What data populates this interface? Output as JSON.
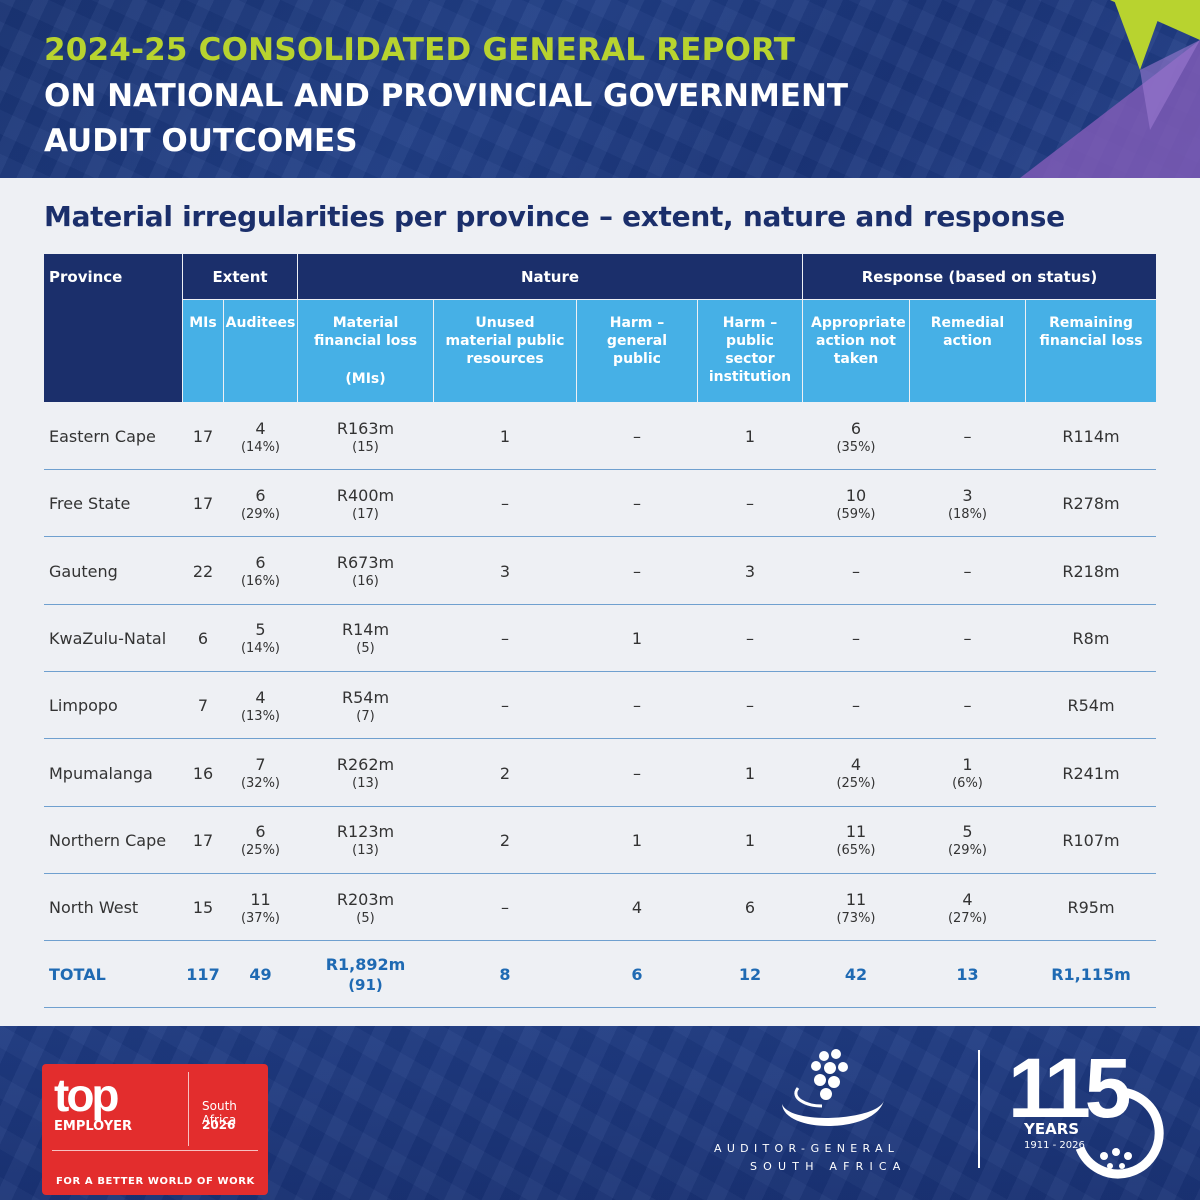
{
  "header": {
    "line1": "2024-25 CONSOLIDATED GENERAL REPORT",
    "line2": "ON NATIONAL AND PROVINCIAL GOVERNMENT",
    "line3": "AUDIT OUTCOMES"
  },
  "subtitle": "Material irregularities per province – extent, nature and response",
  "table": {
    "groups": {
      "province": "Province",
      "extent": "Extent",
      "nature": "Nature",
      "response": "Response (based on status)"
    },
    "subheaders": {
      "mis": "MIs",
      "auditees": "Auditees",
      "mfl": "Material financial loss",
      "mfl_unit": "(MIs)",
      "unused": "Unused material public resources",
      "harm_public": "Harm – general public",
      "harm_sector": "Harm – public sector institution",
      "action_not_taken": "Appropriate action not taken",
      "remedial": "Remedial action",
      "remaining": "Remaining financial loss"
    },
    "rows": [
      {
        "province": "Eastern Cape",
        "mis": "17",
        "auditees": "4",
        "auditees_pct": "(14%)",
        "mfl": "R163m",
        "mfl_count": "(15)",
        "unused": "1",
        "harm_public": "–",
        "harm_sector": "1",
        "action": "6",
        "action_pct": "(35%)",
        "remedial": "–",
        "remedial_pct": "",
        "remaining": "R114m"
      },
      {
        "province": "Free State",
        "mis": "17",
        "auditees": "6",
        "auditees_pct": "(29%)",
        "mfl": "R400m",
        "mfl_count": "(17)",
        "unused": "–",
        "harm_public": "–",
        "harm_sector": "–",
        "action": "10",
        "action_pct": "(59%)",
        "remedial": "3",
        "remedial_pct": "(18%)",
        "remaining": "R278m"
      },
      {
        "province": "Gauteng",
        "mis": "22",
        "auditees": "6",
        "auditees_pct": "(16%)",
        "mfl": "R673m",
        "mfl_count": "(16)",
        "unused": "3",
        "harm_public": "–",
        "harm_sector": "3",
        "action": "–",
        "action_pct": "",
        "remedial": "–",
        "remedial_pct": "",
        "remaining": "R218m"
      },
      {
        "province": "KwaZulu-Natal",
        "mis": "6",
        "auditees": "5",
        "auditees_pct": "(14%)",
        "mfl": "R14m",
        "mfl_count": "(5)",
        "unused": "–",
        "harm_public": "1",
        "harm_sector": "–",
        "action": "–",
        "action_pct": "",
        "remedial": "–",
        "remedial_pct": "",
        "remaining": "R8m"
      },
      {
        "province": "Limpopo",
        "mis": "7",
        "auditees": "4",
        "auditees_pct": "(13%)",
        "mfl": "R54m",
        "mfl_count": "(7)",
        "unused": "–",
        "harm_public": "–",
        "harm_sector": "–",
        "action": "–",
        "action_pct": "",
        "remedial": "–",
        "remedial_pct": "",
        "remaining": "R54m"
      },
      {
        "province": "Mpumalanga",
        "mis": "16",
        "auditees": "7",
        "auditees_pct": "(32%)",
        "mfl": "R262m",
        "mfl_count": "(13)",
        "unused": "2",
        "harm_public": "–",
        "harm_sector": "1",
        "action": "4",
        "action_pct": "(25%)",
        "remedial": "1",
        "remedial_pct": "(6%)",
        "remaining": "R241m"
      },
      {
        "province": "Northern Cape",
        "mis": "17",
        "auditees": "6",
        "auditees_pct": "(25%)",
        "mfl": "R123m",
        "mfl_count": "(13)",
        "unused": "2",
        "harm_public": "1",
        "harm_sector": "1",
        "action": "11",
        "action_pct": "(65%)",
        "remedial": "5",
        "remedial_pct": "(29%)",
        "remaining": "R107m"
      },
      {
        "province": "North West",
        "mis": "15",
        "auditees": "11",
        "auditees_pct": "(37%)",
        "mfl": "R203m",
        "mfl_count": "(5)",
        "unused": "–",
        "harm_public": "4",
        "harm_sector": "6",
        "action": "11",
        "action_pct": "(73%)",
        "remedial": "4",
        "remedial_pct": "(27%)",
        "remaining": "R95m"
      }
    ],
    "total": {
      "province": "TOTAL",
      "mis": "117",
      "auditees": "49",
      "mfl": "R1,892m",
      "mfl_count": "(91)",
      "unused": "8",
      "harm_public": "6",
      "harm_sector": "12",
      "action": "42",
      "remedial": "13",
      "remaining": "R1,115m"
    }
  },
  "footer": {
    "badge_top": "top",
    "badge_employer": "EMPLOYER",
    "badge_country": "South Africa",
    "badge_year": "2026",
    "badge_tagline": "FOR A BETTER WORLD OF WORK",
    "ag_line1": "AUDITOR-GENERAL",
    "ag_line2": "SOUTH AFRICA",
    "anniv_number": "115",
    "anniv_years": "YEARS",
    "anniv_span": "1911 - 2026"
  },
  "colors": {
    "navy": "#1b2f6b",
    "sky": "#46b0e6",
    "lime": "#b8d32f",
    "total_blue": "#1f6ab3",
    "badge_red": "#e32d2d"
  }
}
